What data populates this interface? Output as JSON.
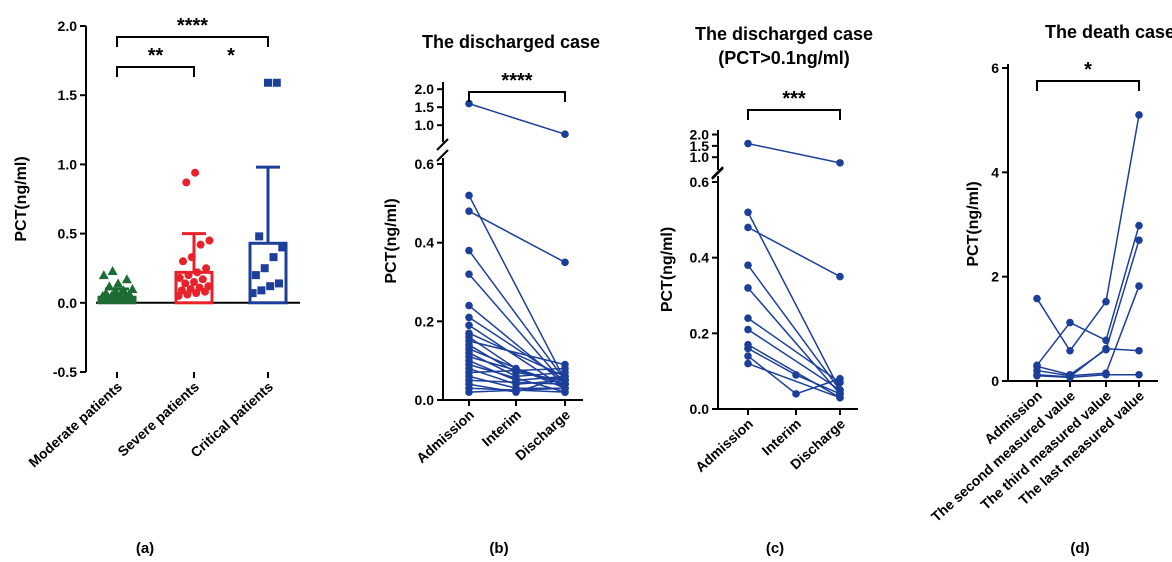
{
  "colors": {
    "moderate": "#1e6b34",
    "severe": "#e8222a",
    "critical": "#1c3f9a",
    "line": "#1c3f9a"
  },
  "chart_data": [
    {
      "panel": "(a)",
      "type": "bar",
      "title": "",
      "ylabel": "PCT(ng/ml)",
      "ylim": [
        -0.5,
        2.0
      ],
      "yticks": [
        "-0.5",
        "0.0",
        "0.5",
        "1.0",
        "1.5",
        "2.0"
      ],
      "yticks_values": [
        -0.5,
        0,
        0.5,
        1.0,
        1.5,
        2.0
      ],
      "categories": [
        "Moderate patients",
        "Severe patients",
        "Critical patients"
      ],
      "means": [
        0.04,
        0.22,
        0.43
      ],
      "error_upper": [
        0.1,
        0.5,
        0.98
      ],
      "points": [
        [
          0.02,
          0.02,
          0.02,
          0.03,
          0.03,
          0.03,
          0.03,
          0.04,
          0.04,
          0.04,
          0.05,
          0.05,
          0.05,
          0.06,
          0.06,
          0.07,
          0.08,
          0.09,
          0.1,
          0.12,
          0.14,
          0.17,
          0.2,
          0.23
        ],
        [
          0.05,
          0.06,
          0.07,
          0.08,
          0.09,
          0.1,
          0.11,
          0.12,
          0.14,
          0.15,
          0.17,
          0.18,
          0.2,
          0.22,
          0.25,
          0.3,
          0.33,
          0.42,
          0.45,
          0.87,
          0.94
        ],
        [
          0.07,
          0.09,
          0.12,
          0.14,
          0.2,
          0.25,
          0.33,
          0.4,
          0.48,
          1.59,
          1.59
        ]
      ],
      "significance": [
        {
          "pair": [
            0,
            2
          ],
          "label": "****"
        },
        {
          "pair": [
            0,
            1
          ],
          "label": "**"
        },
        {
          "pair": [
            1,
            2
          ],
          "label": "*"
        }
      ]
    },
    {
      "panel": "(b)",
      "type": "line",
      "title": "The discharged case",
      "ylabel": "PCT(ng/ml)",
      "categories": [
        "Admission",
        "Interim",
        "Discharge"
      ],
      "yticks_lower": [
        "0.0",
        "0.2",
        "0.4",
        "0.6"
      ],
      "yticks_upper": [
        "1.0",
        "1.5",
        "2.0"
      ],
      "ylim_lower": [
        0,
        0.6
      ],
      "ylim_upper": [
        0.7,
        2.2
      ],
      "series": [
        {
          "values": [
            1.6,
            null,
            0.75
          ]
        },
        {
          "values": [
            0.52,
            null,
            0.05
          ]
        },
        {
          "values": [
            0.48,
            null,
            0.35
          ]
        },
        {
          "values": [
            0.38,
            null,
            0.05
          ]
        },
        {
          "values": [
            0.32,
            null,
            0.04
          ]
        },
        {
          "values": [
            0.24,
            null,
            0.04
          ]
        },
        {
          "values": [
            0.21,
            null,
            0.05
          ]
        },
        {
          "values": [
            0.19,
            null,
            0.03
          ]
        },
        {
          "values": [
            0.17,
            null,
            0.06
          ]
        },
        {
          "values": [
            0.16,
            0.08,
            0.04
          ]
        },
        {
          "values": [
            0.15,
            null,
            0.09
          ]
        },
        {
          "values": [
            0.14,
            0.07,
            0.05
          ]
        },
        {
          "values": [
            0.13,
            null,
            0.03
          ]
        },
        {
          "values": [
            0.12,
            0.06,
            0.07
          ]
        },
        {
          "values": [
            0.11,
            null,
            0.04
          ]
        },
        {
          "values": [
            0.1,
            0.05,
            0.06
          ]
        },
        {
          "values": [
            0.09,
            null,
            0.02
          ]
        },
        {
          "values": [
            0.08,
            0.04,
            0.05
          ]
        },
        {
          "values": [
            0.07,
            null,
            0.08
          ]
        },
        {
          "values": [
            0.06,
            0.03,
            0.03
          ]
        },
        {
          "values": [
            0.05,
            null,
            0.04
          ]
        },
        {
          "values": [
            0.04,
            0.02,
            0.06
          ]
        },
        {
          "values": [
            0.03,
            null,
            0.02
          ]
        },
        {
          "values": [
            0.02,
            null,
            0.03
          ]
        }
      ],
      "significance": [
        {
          "pair": [
            0,
            2
          ],
          "label": "****"
        }
      ]
    },
    {
      "panel": "(c)",
      "type": "line",
      "title": "The discharged case",
      "subtitle": "(PCT>0.1ng/ml)",
      "ylabel": "PCT(ng/ml)",
      "categories": [
        "Admission",
        "Interim",
        "Discharge"
      ],
      "yticks_lower": [
        "0.0",
        "0.2",
        "0.4",
        "0.6"
      ],
      "yticks_upper": [
        "1.0",
        "1.5",
        "2.0"
      ],
      "ylim_lower": [
        0,
        0.6
      ],
      "ylim_upper": [
        0.7,
        2.2
      ],
      "series": [
        {
          "values": [
            1.6,
            null,
            0.75
          ]
        },
        {
          "values": [
            0.52,
            null,
            0.05
          ]
        },
        {
          "values": [
            0.48,
            null,
            0.35
          ]
        },
        {
          "values": [
            0.38,
            null,
            0.05
          ]
        },
        {
          "values": [
            0.32,
            null,
            0.04
          ]
        },
        {
          "values": [
            0.24,
            null,
            0.07
          ]
        },
        {
          "values": [
            0.21,
            null,
            0.05
          ]
        },
        {
          "values": [
            0.17,
            null,
            0.03
          ]
        },
        {
          "values": [
            0.16,
            0.09,
            0.04
          ]
        },
        {
          "values": [
            0.14,
            0.04,
            0.08
          ]
        },
        {
          "values": [
            0.12,
            null,
            0.03
          ]
        }
      ],
      "significance": [
        {
          "pair": [
            0,
            2
          ],
          "label": "***"
        }
      ]
    },
    {
      "panel": "(d)",
      "type": "line",
      "title": "The death case",
      "ylabel": "PCT(ng/ml)",
      "ylim": [
        0,
        6
      ],
      "yticks": [
        "0",
        "2",
        "4",
        "6"
      ],
      "yticks_values": [
        0,
        2,
        4,
        6
      ],
      "categories": [
        "Admission",
        "The second measured value",
        "The third measured value",
        "The last measured value"
      ],
      "series": [
        {
          "values": [
            1.58,
            0.58,
            1.52,
            5.1
          ]
        },
        {
          "values": [
            0.3,
            1.12,
            0.78,
            2.98
          ]
        },
        {
          "values": [
            0.28,
            0.12,
            0.6,
            2.7
          ]
        },
        {
          "values": [
            0.2,
            0.1,
            0.15,
            1.82
          ]
        },
        {
          "values": [
            0.12,
            0.08,
            0.62,
            0.58
          ]
        },
        {
          "values": [
            0.1,
            0.07,
            0.12,
            0.12
          ]
        }
      ],
      "significance": [
        {
          "pair": [
            0,
            3
          ],
          "label": "*"
        }
      ]
    }
  ]
}
